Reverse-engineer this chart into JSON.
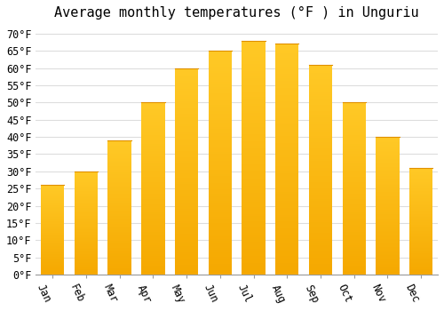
{
  "title": "Average monthly temperatures (°F ) in Unguriu",
  "months": [
    "Jan",
    "Feb",
    "Mar",
    "Apr",
    "May",
    "Jun",
    "Jul",
    "Aug",
    "Sep",
    "Oct",
    "Nov",
    "Dec"
  ],
  "values": [
    26,
    30,
    39,
    50,
    60,
    65,
    68,
    67,
    61,
    50,
    40,
    31
  ],
  "bar_color_top": "#FFC926",
  "bar_color_bottom": "#F5A800",
  "background_color": "#FFFFFF",
  "grid_color": "#DDDDDD",
  "ylim": [
    0,
    72
  ],
  "yticks": [
    0,
    5,
    10,
    15,
    20,
    25,
    30,
    35,
    40,
    45,
    50,
    55,
    60,
    65,
    70
  ],
  "title_fontsize": 11,
  "tick_fontsize": 8.5,
  "xlabel_rotation": -65,
  "figsize": [
    5.0,
    3.5
  ],
  "dpi": 100
}
